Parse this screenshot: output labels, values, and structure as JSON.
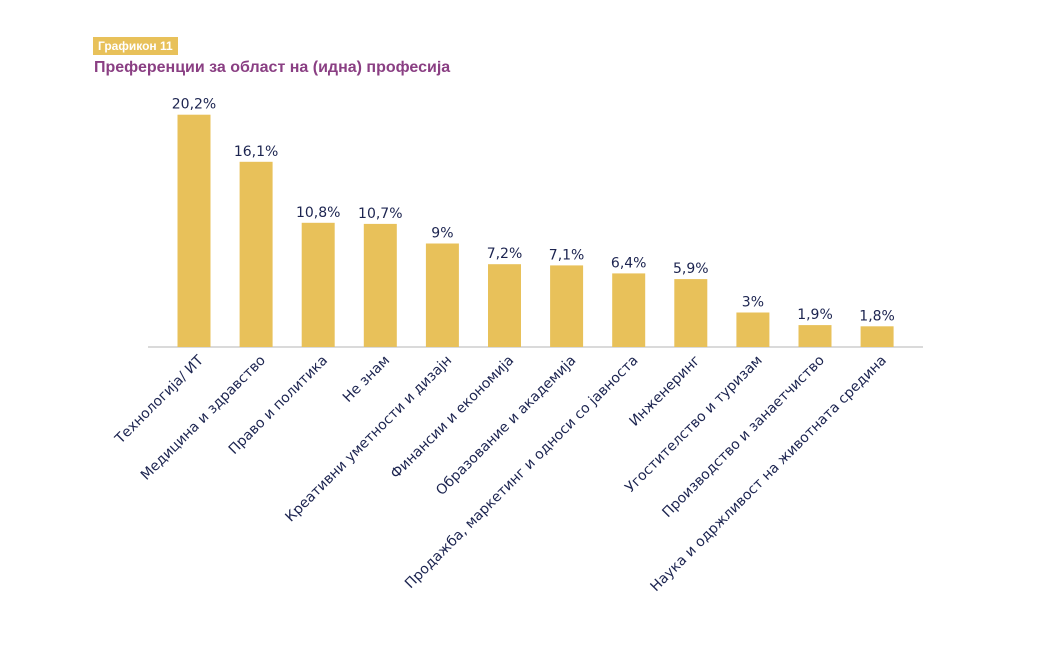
{
  "header": {
    "badge": "Графикон 11",
    "title": "Преференции за област на (идна) професија"
  },
  "colors": {
    "bar": "#e8c15a",
    "badge": "#e8c15a",
    "title": "#8a3f83",
    "text": "#1c2450",
    "axis": "#b5b5b5"
  },
  "chart_data": {
    "type": "bar",
    "title": "Преференции за област на (идна) професија",
    "xlabel": "",
    "ylabel": "",
    "ylim": [
      0,
      21
    ],
    "grid": false,
    "legend": "none",
    "categories": [
      "Технологија/ ИТ",
      "Медицина и здравство",
      "Право и политика",
      "Не знам",
      "Креативни уметности и дизајн",
      "Финансии и економија",
      "Образование и академија",
      "Продажба, маркетинг и односи со јавноста",
      "Инженеринг",
      "Угостителство и туризам",
      "Производство и занаетчиство",
      "Наука и одржливост на животната средина"
    ],
    "values": [
      20.2,
      16.1,
      10.8,
      10.7,
      9,
      7.2,
      7.1,
      6.4,
      5.9,
      3,
      1.9,
      1.8
    ],
    "value_labels": [
      "20,2%",
      "16,1%",
      "10,8%",
      "10,7%",
      "9%",
      "7,2%",
      "7,1%",
      "6,4%",
      "5,9%",
      "3%",
      "1,9%",
      "1,8%"
    ]
  }
}
